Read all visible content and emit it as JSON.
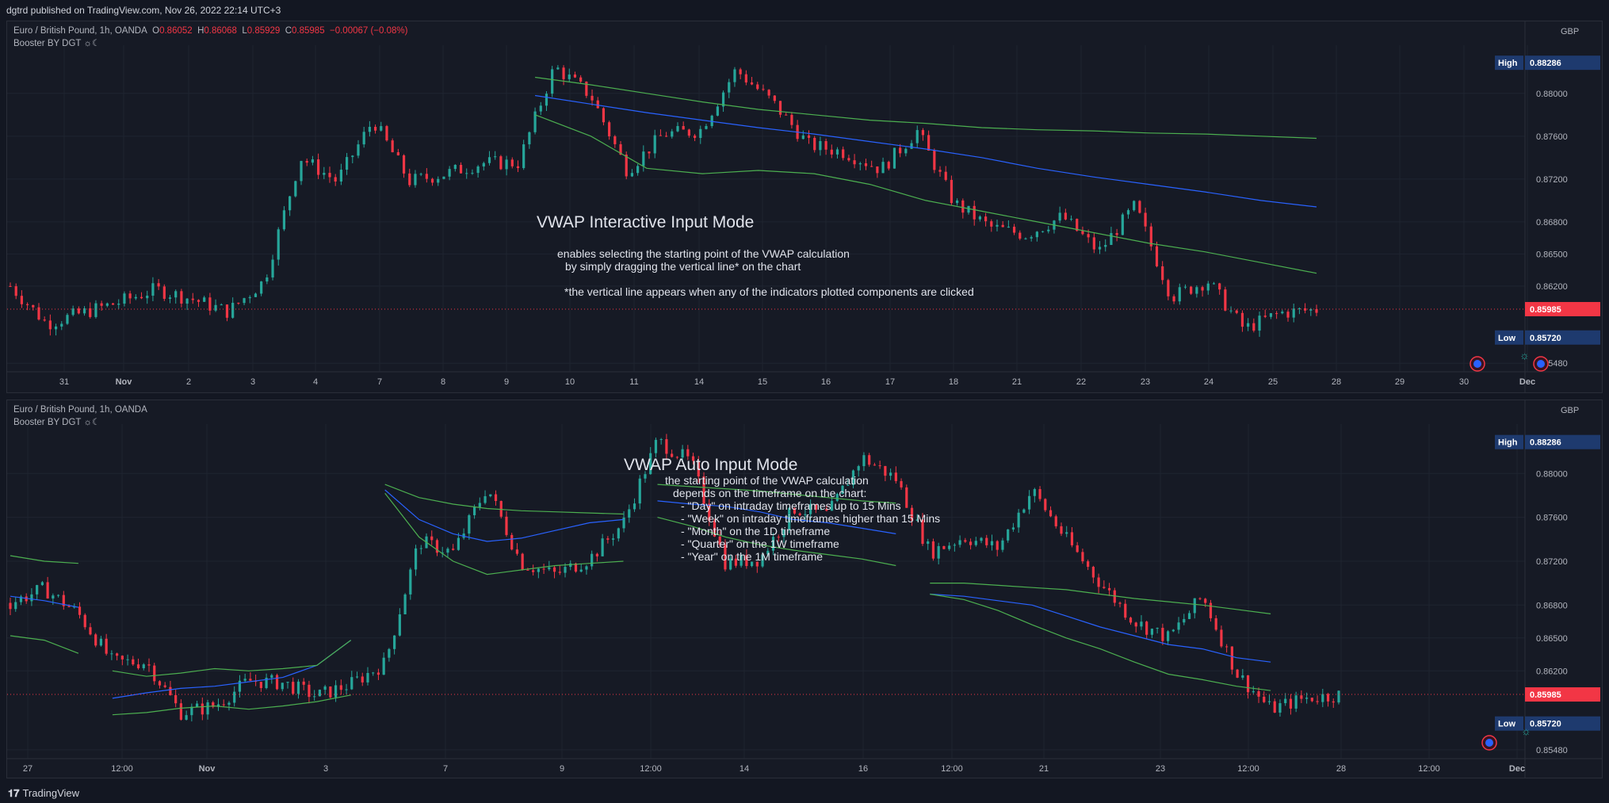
{
  "header": {
    "published": "dgtrd published on TradingView.com, Nov 26, 2022 22:14 UTC+3"
  },
  "footer": {
    "brand": "TradingView"
  },
  "colors": {
    "background": "#131722",
    "pane": "#161a25",
    "grid": "#1f2430",
    "up": "#26a69a",
    "down": "#f23645",
    "vwap_mid": "#2962ff",
    "vwap_band": "#4caf50",
    "last_price": "#f23645",
    "high_low_tag": "#1e3a6e"
  },
  "top_pane": {
    "symbol": "Euro / British Pound, 1h, OANDA",
    "ohlc": {
      "o_label": "O",
      "o": "0.86052",
      "h_label": "H",
      "h": "0.86068",
      "l_label": "L",
      "l": "0.85929",
      "c_label": "C",
      "c": "0.85985",
      "chg": "−0.00067 (−0.08%)"
    },
    "indicator": "Booster BY DGT ☼☾",
    "currency": "GBP",
    "high_label": "High",
    "high_value": "0.88286",
    "low_label": "Low",
    "low_value": "0.85720",
    "last_value": "0.85985",
    "price_ticks": [
      "0.88000",
      "0.87600",
      "0.87200",
      "0.86800",
      "0.86500",
      "0.86200",
      "0.85480"
    ],
    "time_ticks": [
      "31",
      "Nov",
      "2",
      "3",
      "4",
      "7",
      "8",
      "9",
      "10",
      "11",
      "14",
      "15",
      "16",
      "17",
      "18",
      "21",
      "22",
      "23",
      "24",
      "25",
      "28",
      "29",
      "30",
      "Dec"
    ],
    "annotation_title": "VWAP Interactive Input Mode",
    "annotation_lines": [
      "enables selecting the starting point of the VWAP calculation",
      "by simply dragging the vertical line* on the chart",
      "*the vertical line appears when any of the indicators plotted components are clicked"
    ]
  },
  "bottom_pane": {
    "symbol": "Euro / British Pound, 1h, OANDA",
    "indicator": "Booster BY DGT ☼☾",
    "currency": "GBP",
    "high_label": "High",
    "high_value": "0.88286",
    "low_label": "Low",
    "low_value": "0.85720",
    "last_value": "0.85985",
    "price_ticks": [
      "0.88000",
      "0.87600",
      "0.87200",
      "0.86800",
      "0.86500",
      "0.86200",
      "0.85480"
    ],
    "time_ticks": [
      "27",
      "12:00",
      "Nov",
      "3",
      "7",
      "9",
      "12:00",
      "14",
      "16",
      "12:00",
      "21",
      "23",
      "12:00",
      "28",
      "12:00",
      "Dec"
    ],
    "annotation_title": "VWAP Auto Input Mode",
    "annotation_lines": [
      "the starting point of the VWAP calculation",
      "depends on the timeframe on the chart:",
      "- \"Day\" on intraday timeframes up to 15 Mins",
      "- \"Week\" on intraday timeframes higher than 15 Mins",
      "- \"Month\" on the 1D timeframe",
      "- \"Quarter\" on the 1W timeframe",
      "- \"Year\" on the 1M timeframe"
    ]
  },
  "chart_data": [
    {
      "type": "candlestick",
      "title": "Euro / British Pound, 1h, OANDA",
      "ylim": [
        0.854,
        0.8845
      ],
      "x_categories": [
        "31",
        "Nov",
        "2",
        "3",
        "4",
        "7",
        "8",
        "9",
        "10",
        "11",
        "14",
        "15",
        "16",
        "17",
        "18",
        "21",
        "22",
        "23",
        "24",
        "25"
      ],
      "close_path": [
        0.862,
        0.8585,
        0.8595,
        0.8605,
        0.8617,
        0.8608,
        0.8596,
        0.8625,
        0.874,
        0.8718,
        0.8775,
        0.8718,
        0.8725,
        0.8735,
        0.8735,
        0.8825,
        0.8798,
        0.8728,
        0.8762,
        0.8765,
        0.8822,
        0.8792,
        0.8752,
        0.8745,
        0.8729,
        0.8765,
        0.8698,
        0.8675,
        0.8668,
        0.8685,
        0.8652,
        0.8695,
        0.861,
        0.8625,
        0.858,
        0.8595,
        0.8598
      ],
      "last": 0.85985,
      "high": 0.88286,
      "low": 0.8572,
      "series": [
        {
          "name": "VWAP",
          "start_index": 92,
          "values": [
            0.8798,
            0.879,
            0.8782,
            0.8775,
            0.8768,
            0.8762,
            0.8755,
            0.8748,
            0.874,
            0.873,
            0.8722,
            0.8715,
            0.8708,
            0.87,
            0.8694
          ]
        },
        {
          "name": "VWAP upper band",
          "start_index": 92,
          "values": [
            0.8815,
            0.8808,
            0.88,
            0.8792,
            0.8785,
            0.878,
            0.8775,
            0.8772,
            0.8768,
            0.8766,
            0.8765,
            0.8763,
            0.8762,
            0.876,
            0.8758
          ]
        },
        {
          "name": "VWAP lower band",
          "start_index": 92,
          "values": [
            0.878,
            0.876,
            0.873,
            0.8725,
            0.8728,
            0.8725,
            0.8715,
            0.87,
            0.869,
            0.868,
            0.867,
            0.866,
            0.8652,
            0.8642,
            0.8632
          ]
        }
      ]
    },
    {
      "type": "candlestick",
      "title": "Euro / British Pound, 1h, OANDA",
      "ylim": [
        0.854,
        0.8845
      ],
      "x_categories": [
        "27",
        "12:00",
        "Nov",
        "3",
        "7",
        "9",
        "12:00",
        "14",
        "16",
        "12:00",
        "21",
        "23",
        "12:00",
        "28",
        "12:00",
        "Dec"
      ],
      "close_path": [
        0.8682,
        0.8695,
        0.8672,
        0.8628,
        0.8628,
        0.8582,
        0.8588,
        0.8611,
        0.8609,
        0.8597,
        0.8608,
        0.8627,
        0.8738,
        0.8728,
        0.8788,
        0.8718,
        0.8708,
        0.8722,
        0.8755,
        0.883,
        0.881,
        0.8718,
        0.8722,
        0.8768,
        0.8762,
        0.8815,
        0.8795,
        0.8728,
        0.8742,
        0.8732,
        0.8785,
        0.874,
        0.87,
        0.8665,
        0.865,
        0.8688,
        0.8618,
        0.8585,
        0.8595,
        0.8598
      ],
      "last": 0.85985,
      "high": 0.88286,
      "low": 0.8572,
      "series": [
        {
          "name": "VWAP",
          "segments": [
            {
              "from": 0,
              "values": [
                0.8688,
                0.8684,
                0.8678
              ]
            },
            {
              "from": 3,
              "values": [
                0.8595,
                0.86,
                0.8604,
                0.8606,
                0.861,
                0.8614,
                0.8625,
                0.8648
              ]
            },
            {
              "from": 11,
              "values": [
                0.8785,
                0.8758,
                0.8745,
                0.8738,
                0.8741,
                0.8748,
                0.8755,
                0.8758
              ]
            },
            {
              "from": 19,
              "values": [
                0.8775,
                0.8772,
                0.877,
                0.8765,
                0.8758,
                0.8755,
                0.875,
                0.8745
              ]
            },
            {
              "from": 27,
              "values": [
                0.869,
                0.8688,
                0.8684,
                0.868,
                0.867,
                0.866,
                0.8652,
                0.8644,
                0.864,
                0.8632,
                0.8628
              ]
            }
          ]
        },
        {
          "name": "VWAP upper band",
          "segments": [
            {
              "from": 0,
              "values": [
                0.8725,
                0.872,
                0.8718
              ]
            },
            {
              "from": 3,
              "values": [
                0.862,
                0.8615,
                0.8618,
                0.8622,
                0.862,
                0.8622,
                0.8625,
                0.8648
              ]
            },
            {
              "from": 11,
              "values": [
                0.879,
                0.8778,
                0.8772,
                0.8768,
                0.8766,
                0.8765,
                0.8764,
                0.8763
              ]
            },
            {
              "from": 19,
              "values": [
                0.879,
                0.8788,
                0.8786,
                0.8784,
                0.8781,
                0.8778,
                0.8775,
                0.8773
              ]
            },
            {
              "from": 27,
              "values": [
                0.87,
                0.87,
                0.8698,
                0.8696,
                0.8694,
                0.869,
                0.8686,
                0.8683,
                0.868,
                0.8676,
                0.8672
              ]
            }
          ]
        },
        {
          "name": "VWAP lower band",
          "segments": [
            {
              "from": 0,
              "values": [
                0.8652,
                0.8648,
                0.8636
              ]
            },
            {
              "from": 3,
              "values": [
                0.858,
                0.8582,
                0.8586,
                0.8588,
                0.8585,
                0.8588,
                0.8592,
                0.8598
              ]
            },
            {
              "from": 11,
              "values": [
                0.8782,
                0.8742,
                0.872,
                0.8708,
                0.8712,
                0.8716,
                0.8718,
                0.872
              ]
            },
            {
              "from": 19,
              "values": [
                0.876,
                0.8752,
                0.8742,
                0.8735,
                0.873,
                0.8726,
                0.8722,
                0.8716
              ]
            },
            {
              "from": 27,
              "values": [
                0.869,
                0.8685,
                0.8675,
                0.8662,
                0.865,
                0.864,
                0.8628,
                0.8617,
                0.8612,
                0.8606,
                0.8602
              ]
            }
          ]
        }
      ]
    }
  ]
}
